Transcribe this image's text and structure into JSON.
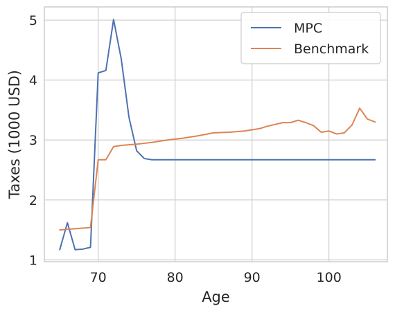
{
  "chart_data": {
    "type": "line",
    "title": "",
    "xlabel": "Age",
    "ylabel": "Taxes (1000 USD)",
    "xlim": [
      63,
      107.6
    ],
    "ylim": [
      0.97,
      5.22
    ],
    "x_ticks": [
      70,
      80,
      90,
      100
    ],
    "y_ticks": [
      1,
      2,
      3,
      4,
      5
    ],
    "grid": true,
    "legend_position": "top-right",
    "series": [
      {
        "name": "MPC",
        "color": "#4c72b0",
        "points": [
          [
            65,
            1.17
          ],
          [
            66,
            1.62
          ],
          [
            67,
            1.17
          ],
          [
            68,
            1.18
          ],
          [
            69,
            1.21
          ],
          [
            70,
            4.12
          ],
          [
            71,
            4.16
          ],
          [
            72,
            5.01
          ],
          [
            73,
            4.35
          ],
          [
            74,
            3.38
          ],
          [
            75,
            2.82
          ],
          [
            76,
            2.69
          ],
          [
            77,
            2.67
          ],
          [
            78,
            2.67
          ],
          [
            80,
            2.67
          ],
          [
            85,
            2.67
          ],
          [
            90,
            2.67
          ],
          [
            95,
            2.67
          ],
          [
            100,
            2.67
          ],
          [
            106,
            2.67
          ]
        ]
      },
      {
        "name": "Benchmark",
        "color": "#dd8452",
        "points": [
          [
            65,
            1.5
          ],
          [
            66,
            1.51
          ],
          [
            67,
            1.52
          ],
          [
            68,
            1.53
          ],
          [
            69,
            1.54
          ],
          [
            70,
            2.67
          ],
          [
            71,
            2.67
          ],
          [
            72,
            2.89
          ],
          [
            73,
            2.91
          ],
          [
            74,
            2.92
          ],
          [
            75,
            2.93
          ],
          [
            77,
            2.96
          ],
          [
            79,
            3.0
          ],
          [
            81,
            3.03
          ],
          [
            83,
            3.07
          ],
          [
            85,
            3.12
          ],
          [
            87,
            3.13
          ],
          [
            89,
            3.15
          ],
          [
            91,
            3.19
          ],
          [
            92,
            3.23
          ],
          [
            93,
            3.26
          ],
          [
            94,
            3.29
          ],
          [
            95,
            3.29
          ],
          [
            96,
            3.33
          ],
          [
            97,
            3.29
          ],
          [
            98,
            3.24
          ],
          [
            99,
            3.13
          ],
          [
            100,
            3.15
          ],
          [
            101,
            3.1
          ],
          [
            102,
            3.12
          ],
          [
            103,
            3.25
          ],
          [
            104,
            3.53
          ],
          [
            105,
            3.35
          ],
          [
            106,
            3.3
          ]
        ]
      }
    ]
  },
  "colors": {
    "background": "#ffffff",
    "grid": "#cccccc",
    "axes": "#cccccc",
    "text": "#262626"
  }
}
